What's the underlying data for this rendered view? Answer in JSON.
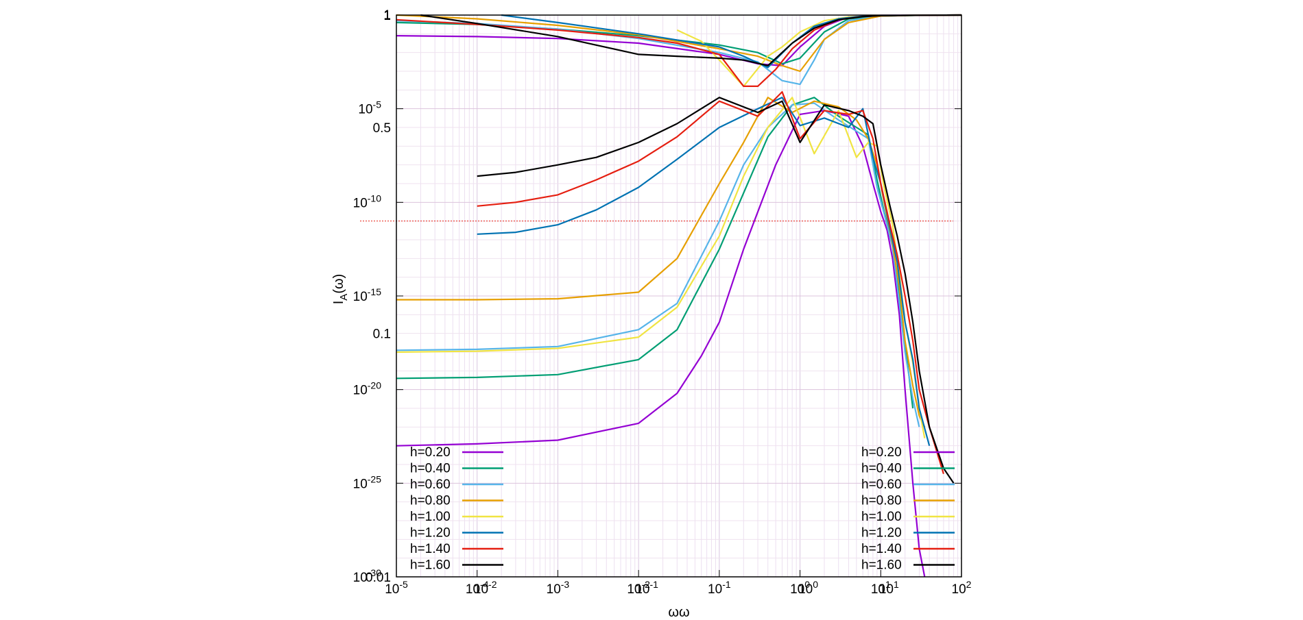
{
  "chart_data": {
    "type": "line",
    "xlabel": "ωω",
    "ylabel": "I",
    "ylabel_sub": "A",
    "ylabel_suffix": "(ω)",
    "xscale": "log",
    "yscale": "log",
    "grid": true,
    "xlim": [
      1e-05,
      100
    ],
    "ylim": [
      1e-30,
      1
    ],
    "overlay_y_ticks": [
      {
        "label": "1",
        "value": 1
      },
      {
        "label": "0.5",
        "value": 1e-06
      },
      {
        "label": "0.1",
        "value": 1e-17
      },
      {
        "label": "0.01",
        "value": 1e-30
      }
    ],
    "overlay_x_ticks": [
      {
        "label": "10",
        "sup": "-2",
        "value": 0.0001
      },
      {
        "label": "10",
        "sup": "-1",
        "value": 0.01
      },
      {
        "label": "10",
        "sup": "0",
        "value": 1
      },
      {
        "label": "10",
        "sup": "1",
        "value": 10
      }
    ],
    "reference_line_y": 1e-11,
    "legends": [
      {
        "position": "bottom-left",
        "style": "label-left"
      },
      {
        "position": "bottom-right",
        "style": "label-left"
      }
    ],
    "series_low": [
      {
        "name": "h=0.20",
        "color": "#9400d3",
        "x": [
          1e-05,
          0.0001,
          0.001,
          0.01,
          0.03,
          0.06,
          0.1,
          0.2,
          0.5,
          1,
          2,
          4,
          6,
          8,
          10,
          12,
          14,
          17,
          20,
          25,
          30,
          35
        ],
        "y": [
          -23,
          -22.9,
          -22.7,
          -21.8,
          -20.2,
          -18.2,
          -16.4,
          -12.5,
          -8,
          -5.3,
          -5.1,
          -5.4,
          -7,
          -9,
          -10.5,
          -11.5,
          -13,
          -16,
          -20,
          -25,
          -28.5,
          -30
        ]
      },
      {
        "name": "h=0.40",
        "color": "#009e73",
        "x": [
          1e-05,
          0.0001,
          0.001,
          0.01,
          0.03,
          0.1,
          0.2,
          0.4,
          0.8,
          1.5,
          3,
          5,
          7,
          9,
          11,
          14,
          17,
          20,
          25
        ],
        "y": [
          -19.4,
          -19.35,
          -19.2,
          -18.4,
          -16.8,
          -12.5,
          -9.5,
          -6.5,
          -4.8,
          -4.4,
          -5.4,
          -6,
          -6.4,
          -8.8,
          -10.5,
          -12.2,
          -14.8,
          -17.5,
          -21
        ]
      },
      {
        "name": "h=0.60",
        "color": "#56b4e9",
        "x": [
          1e-05,
          0.0001,
          0.001,
          0.01,
          0.03,
          0.1,
          0.2,
          0.4,
          0.8,
          1.5,
          3,
          5,
          7,
          9,
          11,
          14,
          17,
          20,
          25,
          30
        ],
        "y": [
          -17.9,
          -17.85,
          -17.7,
          -16.8,
          -15.4,
          -11,
          -8,
          -6,
          -4.8,
          -4.7,
          -5.6,
          -6.2,
          -6.6,
          -9.2,
          -10.6,
          -12.4,
          -15.4,
          -18,
          -20.5,
          -22
        ]
      },
      {
        "name": "h=0.80",
        "color": "#e69f00",
        "x": [
          1e-05,
          0.0001,
          0.001,
          0.01,
          0.03,
          0.1,
          0.2,
          0.4,
          0.8,
          1.5,
          3,
          5,
          7,
          9,
          11,
          14,
          17,
          20,
          25,
          30,
          35
        ],
        "y": [
          -15.2,
          -15.2,
          -15.15,
          -14.8,
          -13,
          -9,
          -6.8,
          -4.4,
          -5.2,
          -4.6,
          -4.9,
          -5.6,
          -6.6,
          -8,
          -10,
          -12.2,
          -14.5,
          -17.4,
          -19.8,
          -21.4,
          -22
        ]
      },
      {
        "name": "h=1.00",
        "color": "#f0e442",
        "x": [
          1e-05,
          0.0001,
          0.001,
          0.01,
          0.03,
          0.1,
          0.2,
          0.4,
          0.8,
          1.5,
          3,
          5,
          7,
          9,
          11,
          14,
          17,
          20,
          25,
          30,
          35
        ],
        "y": [
          -18,
          -17.95,
          -17.8,
          -17.2,
          -15.6,
          -11.8,
          -8.6,
          -6,
          -4.4,
          -7.4,
          -5.1,
          -7.6,
          -6.8,
          -7,
          -9.2,
          -11.2,
          -13.8,
          -16.4,
          -18.6,
          -21,
          -22.6
        ]
      },
      {
        "name": "h=1.20",
        "color": "#0072b2",
        "x": [
          0.0001,
          0.0003,
          0.001,
          0.003,
          0.01,
          0.03,
          0.1,
          0.3,
          0.6,
          1,
          2,
          4,
          6,
          8,
          10,
          13,
          16,
          20,
          25,
          30,
          40
        ],
        "y": [
          -11.7,
          -11.6,
          -11.2,
          -10.4,
          -9.2,
          -7.7,
          -6,
          -5,
          -4.4,
          -5.9,
          -5.5,
          -6,
          -5,
          -7.6,
          -9,
          -11.4,
          -13.2,
          -16.4,
          -18.4,
          -21,
          -23
        ]
      },
      {
        "name": "h=1.40",
        "color": "#e51e10",
        "x": [
          0.0001,
          0.0003,
          0.001,
          0.003,
          0.01,
          0.03,
          0.1,
          0.3,
          0.6,
          1,
          2,
          4,
          6,
          8,
          10,
          13,
          16,
          20,
          25,
          30,
          40,
          60
        ],
        "y": [
          -10.2,
          -10.0,
          -9.6,
          -8.8,
          -7.8,
          -6.5,
          -4.6,
          -5.4,
          -4.1,
          -6.6,
          -5.1,
          -5.3,
          -5.1,
          -6.6,
          -9,
          -11.2,
          -12.8,
          -15,
          -17.4,
          -20,
          -22,
          -24.5
        ]
      },
      {
        "name": "h=1.60",
        "color": "#000000",
        "x": [
          0.0001,
          0.0003,
          0.001,
          0.003,
          0.01,
          0.03,
          0.1,
          0.3,
          0.6,
          1,
          2,
          4,
          6,
          8,
          10,
          13,
          16,
          20,
          25,
          30,
          40,
          60,
          80
        ],
        "y": [
          -8.6,
          -8.4,
          -8,
          -7.6,
          -6.8,
          -5.8,
          -4.4,
          -5.2,
          -4.6,
          -6.8,
          -4.8,
          -5.1,
          -5.4,
          -5.8,
          -8,
          -10.2,
          -11.8,
          -13.8,
          -16.4,
          -19,
          -22,
          -24.2,
          -25
        ]
      }
    ],
    "series_high": [
      {
        "name": "h=0.20",
        "color": "#9400d3",
        "x": [
          1e-05,
          0.0001,
          0.001,
          0.01,
          0.1,
          0.3,
          0.6,
          1,
          2,
          4,
          10,
          30,
          100
        ],
        "y": [
          -1.1,
          -1.15,
          -1.25,
          -1.5,
          -2.1,
          -2.6,
          -2.7,
          -1.7,
          -0.6,
          -0.1,
          -0.02,
          -0.01,
          0
        ]
      },
      {
        "name": "h=0.40",
        "color": "#009e73",
        "x": [
          1e-05,
          0.0001,
          0.001,
          0.01,
          0.1,
          0.3,
          0.6,
          1,
          2,
          4,
          10,
          30,
          100
        ],
        "y": [
          -0.4,
          -0.5,
          -0.75,
          -1.1,
          -1.6,
          -2,
          -2.6,
          -2.3,
          -0.9,
          -0.2,
          -0.05,
          -0.01,
          0
        ]
      },
      {
        "name": "h=0.60",
        "color": "#56b4e9",
        "x": [
          1e-05,
          0.0001,
          0.001,
          0.01,
          0.1,
          0.3,
          0.6,
          1,
          1.5,
          2,
          4,
          10,
          30,
          100
        ],
        "y": [
          -0.3,
          -0.45,
          -0.75,
          -1.25,
          -2,
          -2.5,
          -3.5,
          -3.7,
          -2.4,
          -1.3,
          -0.3,
          -0.05,
          -0.01,
          0
        ]
      },
      {
        "name": "h=0.80",
        "color": "#e69f00",
        "x": [
          1e-05,
          0.0001,
          0.001,
          0.01,
          0.1,
          0.3,
          0.6,
          1,
          2,
          4,
          10,
          30,
          100
        ],
        "y": [
          0,
          -0.2,
          -0.55,
          -1.05,
          -1.8,
          -2.2,
          -2.7,
          -3,
          -1.3,
          -0.4,
          -0.05,
          -0.01,
          0
        ]
      },
      {
        "name": "h=1.00",
        "color": "#f0e442",
        "x": [
          0.03,
          0.06,
          0.1,
          0.2,
          0.4,
          0.6,
          1,
          2,
          4,
          10,
          30,
          100
        ],
        "y": [
          -0.8,
          -1.4,
          -2.4,
          -3.8,
          -2.2,
          -1.7,
          -0.9,
          -0.3,
          -0.1,
          -0.03,
          -0.01,
          0
        ]
      },
      {
        "name": "h=1.20",
        "color": "#0072b2",
        "x": [
          0.0002,
          0.001,
          0.01,
          0.1,
          0.2,
          0.4,
          0.8,
          1.5,
          3,
          6,
          10,
          30,
          100
        ],
        "y": [
          0,
          -0.4,
          -1,
          -1.7,
          -2.2,
          -2.8,
          -1.5,
          -0.6,
          -0.2,
          -0.06,
          -0.03,
          -0.01,
          0
        ]
      },
      {
        "name": "h=1.40",
        "color": "#e51e10",
        "x": [
          1e-05,
          0.0001,
          0.001,
          0.01,
          0.03,
          0.1,
          0.2,
          0.3,
          0.5,
          0.8,
          1.5,
          3,
          6,
          10,
          30,
          100
        ],
        "y": [
          -0.25,
          -0.5,
          -0.8,
          -1.2,
          -1.5,
          -2.1,
          -3.8,
          -3.8,
          -2.9,
          -1.8,
          -0.8,
          -0.25,
          -0.08,
          -0.03,
          -0.01,
          0
        ]
      },
      {
        "name": "h=1.60",
        "color": "#000000",
        "x": [
          2e-05,
          0.0001,
          0.001,
          0.01,
          0.03,
          0.1,
          0.2,
          0.4,
          0.8,
          1.5,
          3,
          6,
          10,
          30,
          100
        ],
        "y": [
          0,
          -0.45,
          -1.15,
          -2.1,
          -2.2,
          -2.3,
          -2.4,
          -2.7,
          -1.5,
          -0.7,
          -0.25,
          -0.08,
          -0.03,
          -0.01,
          0
        ]
      }
    ]
  }
}
